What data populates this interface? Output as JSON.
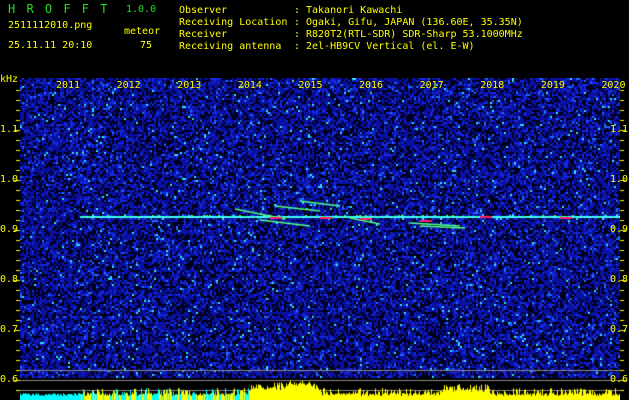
{
  "app": {
    "name": "H R O F F T",
    "version": "1.0.0"
  },
  "file": {
    "name": "2511112010.png",
    "datetime": "25.11.11 20:10"
  },
  "count": {
    "label": "meteor",
    "value": "75"
  },
  "info": [
    {
      "label": "Observer",
      "value": "Takanori Kawachi"
    },
    {
      "label": "Receiving Location",
      "value": "Ogaki, Gifu, JAPAN (136.60E, 35.35N)"
    },
    {
      "label": "Receiver",
      "value": "R820T2(RTL-SDR) SDR-Sharp 53.1000MHz"
    },
    {
      "label": "Receiving antenna",
      "value": "2el-HB9CV Vertical (el. E-W)"
    }
  ],
  "axis": {
    "unit": "kHz",
    "ticks": [
      "1.1",
      "1.0",
      "0.9",
      "0.8",
      "0.7",
      "0.6"
    ]
  },
  "time_labels": [
    "2011",
    "2012",
    "2013",
    "2014",
    "2015",
    "2016",
    "2017",
    "2018",
    "2019",
    "2020"
  ],
  "colors": {
    "text": "#ffff00",
    "logo": "#22dd22",
    "background": "#000000",
    "noise": "#0a14c8",
    "signal": "#40ffff",
    "histogram": "#ffff00",
    "histogram_base": "#00ffff"
  }
}
